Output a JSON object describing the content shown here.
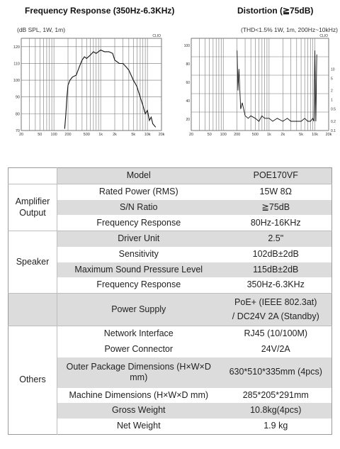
{
  "charts": {
    "left": {
      "title": "Frequency Response (350Hz-6.3KHz)",
      "note": "(dB SPL, 1W, 1m)",
      "corner": "CLIO",
      "y_ticks": [
        "120",
        "110",
        "100",
        "90",
        "80",
        "70"
      ],
      "x_ticks": [
        "20",
        "50",
        "100",
        "200",
        "500",
        "1k",
        "2k",
        "5k",
        "10k",
        "20k"
      ]
    },
    "right": {
      "title": "Distortion (≧75dB)",
      "note": "(THD<1.5% 1W, 1m, 200Hz~10kHz)",
      "corner": "CLIO",
      "y_ticks_left": [
        "100",
        "80",
        "60",
        "40",
        "20"
      ],
      "y_ticks_right": [
        "10",
        "5",
        "2",
        "1",
        "0.5",
        "0.2",
        "0.1"
      ],
      "x_ticks": [
        "20",
        "50",
        "100",
        "200",
        "500",
        "1k",
        "2k",
        "5k",
        "10k",
        "20k"
      ]
    }
  },
  "chart_data": [
    {
      "type": "line",
      "title": "Frequency Response (350Hz-6.3KHz)",
      "subtitle": "(dB SPL, 1W, 1m)",
      "xscale": "log",
      "xlim": [
        20,
        20000
      ],
      "ylim": [
        70,
        125
      ],
      "grid": true,
      "series": [
        {
          "x": [
            170,
            180,
            190,
            200,
            220,
            250,
            300,
            350,
            400,
            450,
            500,
            600,
            700,
            800,
            1000,
            1200,
            1500,
            1800,
            2000,
            2500,
            3000,
            3500,
            4000,
            5000,
            5500,
            6000,
            6300,
            7000,
            8000,
            9000,
            10000,
            11000,
            12000,
            13000,
            15000
          ],
          "y": [
            71,
            80,
            90,
            97,
            100,
            102,
            103,
            108,
            112,
            114,
            113,
            115,
            117,
            116,
            118,
            117,
            117,
            116,
            112,
            110,
            110,
            108,
            106,
            100,
            98,
            96,
            94,
            90,
            85,
            80,
            82,
            76,
            78,
            74,
            72
          ]
        }
      ]
    },
    {
      "type": "line",
      "title": "Distortion (≧75dB)",
      "subtitle": "(THD<1.5% 1W, 1m, 200Hz~10kHz)",
      "xscale": "log",
      "xlim": [
        20,
        20000
      ],
      "ylim": [
        0.1,
        100
      ],
      "grid": true,
      "series": [
        {
          "x": [
            200,
            210,
            220,
            240,
            260,
            300,
            350,
            400,
            500,
            600,
            700,
            800,
            1000,
            1200,
            1500,
            2000,
            2500,
            3000,
            4000,
            5000,
            6000,
            7000,
            8000,
            9000,
            9500,
            10000,
            10500,
            11000
          ],
          "y": [
            40,
            2,
            10,
            0.5,
            0.8,
            0.3,
            0.25,
            0.3,
            0.25,
            0.2,
            0.3,
            0.25,
            0.25,
            0.2,
            0.25,
            0.2,
            0.25,
            0.2,
            0.2,
            0.2,
            0.25,
            0.2,
            0.2,
            0.25,
            0.2,
            40,
            0.2,
            30
          ]
        }
      ]
    }
  ],
  "table": {
    "rows": [
      {
        "group": "",
        "label": "Model",
        "value": "POE170VF"
      },
      {
        "group": "Amplifier Output",
        "label": "Rated Power (RMS)",
        "value": "15W 8Ω"
      },
      {
        "group": "",
        "label": "S/N Ratio",
        "value": "≧75dB"
      },
      {
        "group": "",
        "label": "Frequency Response",
        "value": "80Hz-16KHz"
      },
      {
        "group": "Speaker",
        "label": "Driver Unit",
        "value": "2.5\""
      },
      {
        "group": "",
        "label": "Sensitivity",
        "value": "102dB±2dB"
      },
      {
        "group": "",
        "label": "Maximum Sound Pressure Level",
        "value": "115dB±2dB"
      },
      {
        "group": "",
        "label": "Frequency Response",
        "value": "350Hz-6.3KHz"
      },
      {
        "group": "",
        "label": "Power Supply",
        "value": "PoE+ (IEEE 802.3at)",
        "value2": "/ DC24V 2A (Standby)"
      },
      {
        "group": "Others",
        "label": "Network Interface",
        "value": "RJ45 (10/100M)"
      },
      {
        "group": "",
        "label": "Power Connector",
        "value": "24V/2A"
      },
      {
        "group": "",
        "label": "Outer Package Dimensions (H×W×D mm)",
        "value": "630*510*335mm (4pcs)"
      },
      {
        "group": "",
        "label": "Machine Dimensions (H×W×D mm)",
        "value": "285*205*291mm"
      },
      {
        "group": "",
        "label": "Gross Weight",
        "value": "10.8kg(4pcs)"
      },
      {
        "group": "",
        "label": "Net Weight",
        "value": "1.9 kg"
      }
    ]
  }
}
